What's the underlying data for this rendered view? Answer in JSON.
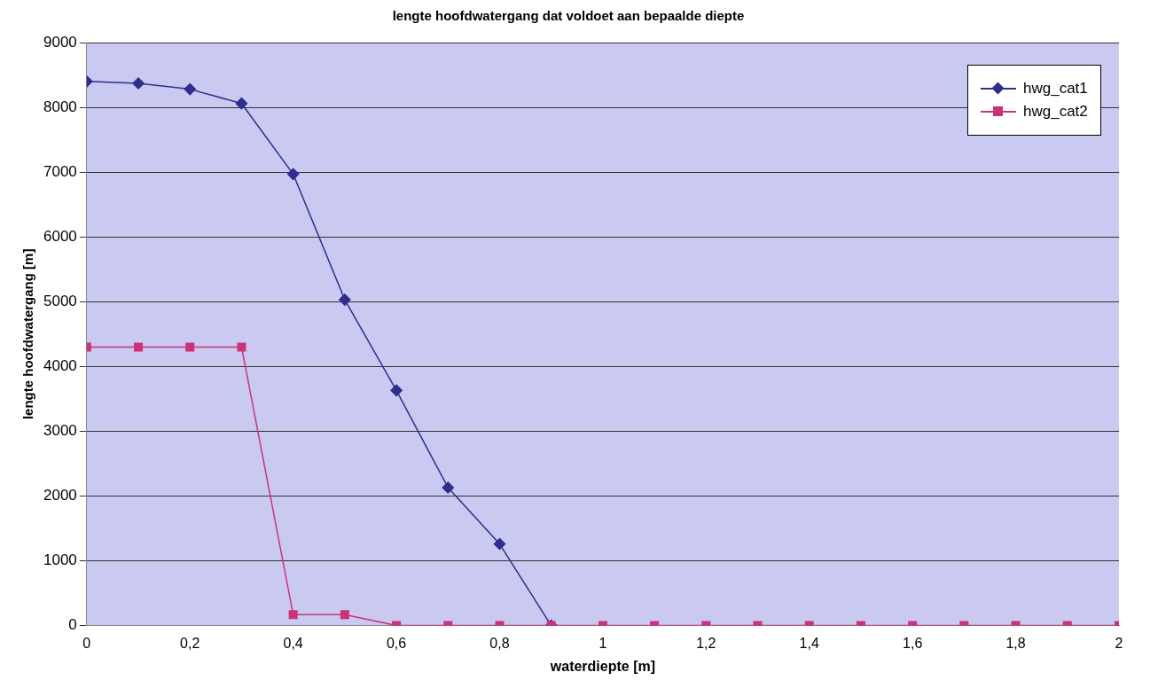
{
  "chart_data": {
    "type": "line",
    "title": "lengte hoofdwatergang dat voldoet aan bepaalde diepte",
    "xlabel": "waterdiepte [m]",
    "ylabel": "lengte hoofdwatergang [m]",
    "x": [
      0,
      0.1,
      0.2,
      0.3,
      0.4,
      0.5,
      0.6,
      0.7,
      0.8,
      0.9,
      1,
      1.1,
      1.2,
      1.3,
      1.4,
      1.5,
      1.6,
      1.7,
      1.8,
      1.9,
      2
    ],
    "series": [
      {
        "name": "hwg_cat1",
        "color": "#2e2e8c",
        "marker": "diamond",
        "values": [
          8400,
          8370,
          8280,
          8060,
          6970,
          5030,
          3630,
          2130,
          1260,
          0,
          null,
          null,
          null,
          null,
          null,
          null,
          null,
          null,
          null,
          null,
          null
        ]
      },
      {
        "name": "hwg_cat2",
        "color": "#cc3377",
        "marker": "square",
        "values": [
          4300,
          4300,
          4300,
          4300,
          170,
          170,
          0,
          0,
          0,
          0,
          0,
          0,
          0,
          0,
          0,
          0,
          0,
          0,
          0,
          0,
          0
        ]
      }
    ],
    "xlim": [
      0,
      2
    ],
    "xticks": [
      0,
      {
        "value": 0.2,
        "label": "0,2"
      },
      {
        "value": 0.4,
        "label": "0,4"
      },
      {
        "value": 0.6,
        "label": "0,6"
      },
      {
        "value": 0.8,
        "label": "0,8"
      },
      1,
      {
        "value": 1.2,
        "label": "1,2"
      },
      {
        "value": 1.4,
        "label": "1,4"
      },
      {
        "value": 1.6,
        "label": "1,6"
      },
      {
        "value": 1.8,
        "label": "1,8"
      },
      2
    ],
    "ylim": [
      0,
      9000
    ],
    "yticks": [
      0,
      1000,
      2000,
      3000,
      4000,
      5000,
      6000,
      7000,
      8000,
      9000
    ],
    "grid": "y",
    "legend": "top right",
    "line_style": "solid"
  }
}
